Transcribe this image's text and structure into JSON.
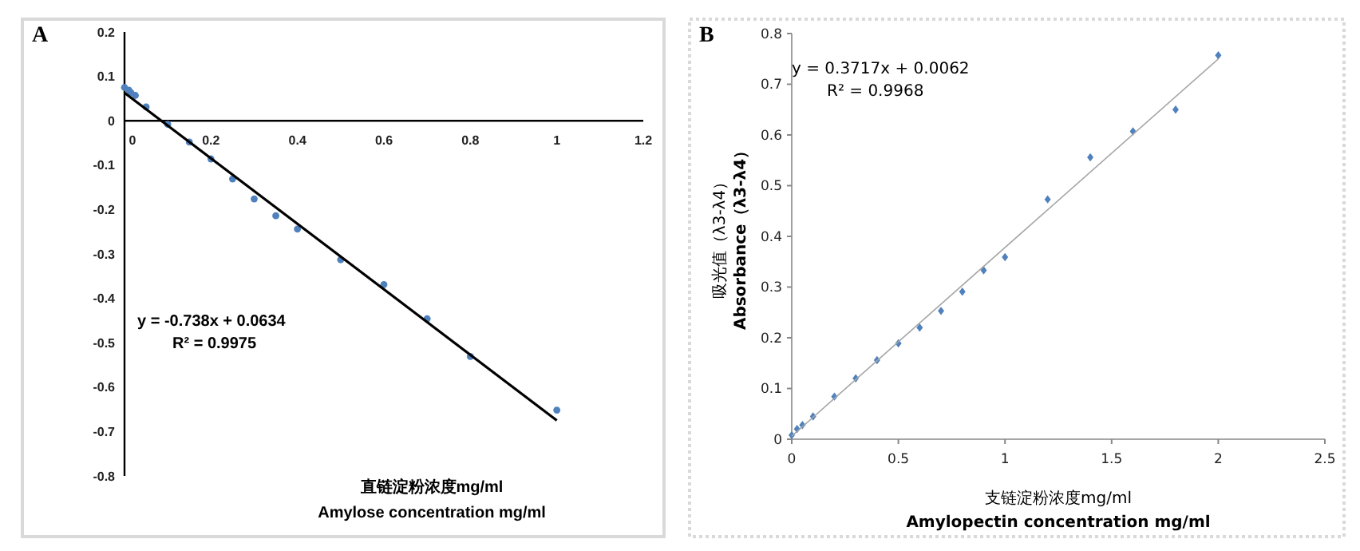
{
  "chart_data": [
    {
      "type": "scatter",
      "title": "A",
      "xlabel": "直链淀粉浓度mg/ml\nAmylose concentration mg/ml",
      "xlim": [
        0,
        1.2
      ],
      "ylim": [
        -0.8,
        0.2
      ],
      "xticks": [
        0,
        0.2,
        0.4,
        0.6,
        0.8,
        1,
        1.2
      ],
      "yticks": [
        -0.8,
        -0.7,
        -0.6,
        -0.5,
        -0.4,
        -0.3,
        -0.2,
        -0.1,
        0,
        0.1,
        0.2
      ],
      "marker": "circle",
      "grid": false,
      "annotations": [
        "y = -0.738x + 0.0634",
        "R² = 0.9975"
      ],
      "series": [
        {
          "color": "#4f81bd",
          "x": [
            0,
            0.01,
            0.015,
            0.025,
            0.05,
            0.1,
            0.15,
            0.2,
            0.25,
            0.3,
            0.35,
            0.4,
            0.5,
            0.6,
            0.7,
            0.8,
            1.0
          ],
          "values": [
            0.075,
            0.069,
            0.063,
            0.057,
            0.031,
            -0.008,
            -0.048,
            -0.086,
            -0.131,
            -0.176,
            -0.214,
            -0.244,
            -0.313,
            -0.369,
            -0.446,
            -0.531,
            -0.652
          ]
        },
        {
          "type": "line",
          "color": "#000000",
          "marker": "none",
          "x": [
            0,
            1
          ],
          "values": [
            0.063,
            -0.675
          ]
        }
      ]
    },
    {
      "type": "scatter",
      "title": "B",
      "xlabel": "支链淀粉浓度mg/ml\nAmylopectin concentration mg/ml",
      "ylabel": "吸光值（λ3-λ4）\nAbsorbance（λ3-λ4）",
      "xlim": [
        0,
        2.5
      ],
      "ylim": [
        0,
        0.8
      ],
      "xticks": [
        0,
        0.5,
        1,
        1.5,
        2,
        2.5
      ],
      "yticks": [
        0,
        0.1,
        0.2,
        0.3,
        0.4,
        0.5,
        0.6,
        0.7,
        0.8
      ],
      "marker": "diamond",
      "grid": false,
      "annotations": [
        "y = 0.3717x + 0.0062",
        "R² = 0.9968"
      ],
      "series": [
        {
          "color": "#4f81bd",
          "x": [
            0,
            0.025,
            0.05,
            0.1,
            0.2,
            0.3,
            0.4,
            0.5,
            0.6,
            0.7,
            0.8,
            0.9,
            1.0,
            1.2,
            1.4,
            1.6,
            1.8,
            2.0
          ],
          "values": [
            0.008,
            0.02,
            0.028,
            0.045,
            0.084,
            0.12,
            0.156,
            0.189,
            0.22,
            0.253,
            0.291,
            0.333,
            0.359,
            0.473,
            0.556,
            0.607,
            0.65,
            0.757
          ]
        },
        {
          "type": "line",
          "color": "#a6a6a6",
          "marker": "none",
          "x": [
            0,
            2
          ],
          "values": [
            0.006,
            0.75
          ]
        }
      ]
    }
  ]
}
